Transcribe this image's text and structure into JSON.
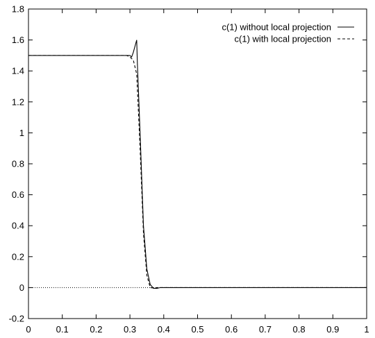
{
  "chart_data": {
    "type": "line",
    "title": "",
    "xlabel": "",
    "ylabel": "",
    "xlim": [
      0,
      1
    ],
    "ylim": [
      -0.2,
      1.8
    ],
    "x_ticks": [
      "0",
      "0.1",
      "0.2",
      "0.3",
      "0.4",
      "0.5",
      "0.6",
      "0.7",
      "0.8",
      "0.9",
      "1"
    ],
    "y_ticks": [
      "-0.2",
      "0",
      "0.2",
      "0.4",
      "0.6",
      "0.8",
      "1",
      "1.2",
      "1.4",
      "1.6",
      "1.8"
    ],
    "grid": false,
    "legend_position": "top-right",
    "zero_line": true,
    "series": [
      {
        "name": "c(1) without local projection",
        "style": "solid",
        "color": "#000000",
        "x": [
          0,
          0.29,
          0.3,
          0.305,
          0.31,
          0.32,
          0.322,
          0.33,
          0.34,
          0.35,
          0.36,
          0.37,
          0.38,
          0.39,
          1.0
        ],
        "y": [
          1.5,
          1.5,
          1.5,
          1.49,
          1.52,
          1.6,
          1.45,
          1.0,
          0.4,
          0.12,
          0.02,
          -0.005,
          -0.005,
          0.0,
          0.0
        ]
      },
      {
        "name": "c(1) with local projection",
        "style": "dashed",
        "color": "#000000",
        "x": [
          0,
          0.29,
          0.3,
          0.31,
          0.32,
          0.33,
          0.34,
          0.35,
          0.36,
          0.37,
          0.38,
          1.0
        ],
        "y": [
          1.5,
          1.5,
          1.49,
          1.47,
          1.38,
          0.9,
          0.35,
          0.08,
          0.0,
          -0.003,
          0.0,
          0.0
        ]
      }
    ]
  }
}
